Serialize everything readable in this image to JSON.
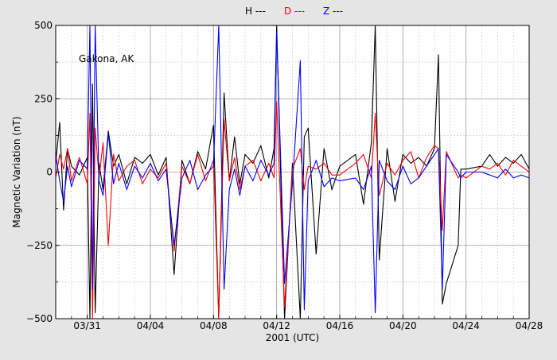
{
  "chart_data": {
    "type": "line",
    "legend_position": "top",
    "location_label": "Gakona, AK",
    "xlabel": "2001 (UTC)",
    "ylabel": "Magnetic Variation (nT)",
    "ylim": [
      -500,
      500
    ],
    "xlim": [
      "2001-03-29",
      "2001-04-28"
    ],
    "grid": true,
    "x_tick_labels": [
      "03/31",
      "04/04",
      "04/08",
      "04/12",
      "04/16",
      "04/20",
      "04/24",
      "04/28"
    ],
    "y_tick_labels": [
      "500",
      "250",
      "0",
      "−250",
      "−500"
    ],
    "series": [
      {
        "name": "H ---",
        "color": "#000000",
        "x": [
          "2001-03-29 00:00",
          "2001-03-29 06:00",
          "2001-03-29 12:00",
          "2001-03-29 18:00",
          "2001-03-30 00:00",
          "2001-03-30 12:00",
          "2001-03-31 00:00",
          "2001-03-31 04:00",
          "2001-03-31 08:00",
          "2001-03-31 12:00",
          "2001-03-31 18:00",
          "2001-04-01 00:00",
          "2001-04-01 08:00",
          "2001-04-01 16:00",
          "2001-04-02 00:00",
          "2001-04-02 12:00",
          "2001-04-03 00:00",
          "2001-04-03 12:00",
          "2001-04-04 00:00",
          "2001-04-04 12:00",
          "2001-04-05 00:00",
          "2001-04-05 12:00",
          "2001-04-06 00:00",
          "2001-04-06 12:00",
          "2001-04-07 00:00",
          "2001-04-07 12:00",
          "2001-04-08 00:00",
          "2001-04-08 08:00",
          "2001-04-08 16:00",
          "2001-04-09 00:00",
          "2001-04-09 08:00",
          "2001-04-09 16:00",
          "2001-04-10 00:00",
          "2001-04-10 12:00",
          "2001-04-11 00:00",
          "2001-04-11 12:00",
          "2001-04-11 20:00",
          "2001-04-12 00:00",
          "2001-04-12 12:00",
          "2001-04-13 00:00",
          "2001-04-13 12:00",
          "2001-04-13 18:00",
          "2001-04-14 00:00",
          "2001-04-14 12:00",
          "2001-04-15 00:00",
          "2001-04-15 12:00",
          "2001-04-16 00:00",
          "2001-04-17 00:00",
          "2001-04-17 12:00",
          "2001-04-18 00:00",
          "2001-04-18 06:00",
          "2001-04-18 12:00",
          "2001-04-19 00:00",
          "2001-04-19 12:00",
          "2001-04-20 00:00",
          "2001-04-20 12:00",
          "2001-04-21 00:00",
          "2001-04-21 12:00",
          "2001-04-22 00:00",
          "2001-04-22 06:00",
          "2001-04-22 12:00",
          "2001-04-22 18:00",
          "2001-04-23 12:00",
          "2001-04-23 16:00",
          "2001-04-24 00:00",
          "2001-04-25 00:00",
          "2001-04-25 12:00",
          "2001-04-26 00:00",
          "2001-04-26 12:00",
          "2001-04-27 00:00",
          "2001-04-27 12:00",
          "2001-04-28 00:00"
        ],
        "values": [
          30,
          170,
          -130,
          80,
          20,
          -10,
          50,
          -500,
          300,
          -480,
          30,
          -60,
          140,
          20,
          60,
          -40,
          50,
          30,
          60,
          -10,
          50,
          -350,
          40,
          -40,
          70,
          10,
          160,
          -500,
          270,
          -30,
          120,
          -40,
          60,
          30,
          90,
          -20,
          80,
          500,
          -500,
          30,
          -500,
          120,
          150,
          -280,
          80,
          -60,
          20,
          60,
          -110,
          100,
          500,
          -300,
          80,
          -100,
          60,
          30,
          50,
          20,
          80,
          400,
          -450,
          -380,
          -250,
          10,
          10,
          20,
          60,
          20,
          50,
          30,
          60,
          10
        ]
      },
      {
        "name": "D ---",
        "color": "#ff0000",
        "x": [
          "2001-03-29 00:00",
          "2001-03-29 06:00",
          "2001-03-29 12:00",
          "2001-03-29 18:00",
          "2001-03-30 00:00",
          "2001-03-30 12:00",
          "2001-03-31 00:00",
          "2001-03-31 04:00",
          "2001-03-31 08:00",
          "2001-03-31 12:00",
          "2001-03-31 18:00",
          "2001-04-01 00:00",
          "2001-04-01 08:00",
          "2001-04-01 16:00",
          "2001-04-02 00:00",
          "2001-04-02 12:00",
          "2001-04-03 00:00",
          "2001-04-03 12:00",
          "2001-04-04 00:00",
          "2001-04-04 12:00",
          "2001-04-05 00:00",
          "2001-04-05 12:00",
          "2001-04-06 00:00",
          "2001-04-06 12:00",
          "2001-04-07 00:00",
          "2001-04-07 12:00",
          "2001-04-08 00:00",
          "2001-04-08 08:00",
          "2001-04-08 16:00",
          "2001-04-09 00:00",
          "2001-04-09 08:00",
          "2001-04-09 16:00",
          "2001-04-10 00:00",
          "2001-04-10 12:00",
          "2001-04-11 00:00",
          "2001-04-11 12:00",
          "2001-04-11 20:00",
          "2001-04-12 00:00",
          "2001-04-12 12:00",
          "2001-04-13 00:00",
          "2001-04-13 12:00",
          "2001-04-13 18:00",
          "2001-04-14 00:00",
          "2001-04-14 12:00",
          "2001-04-15 00:00",
          "2001-04-15 12:00",
          "2001-04-16 00:00",
          "2001-04-17 00:00",
          "2001-04-17 12:00",
          "2001-04-18 00:00",
          "2001-04-18 06:00",
          "2001-04-18 12:00",
          "2001-04-19 00:00",
          "2001-04-19 12:00",
          "2001-04-20 00:00",
          "2001-04-20 12:00",
          "2001-04-21 00:00",
          "2001-04-21 12:00",
          "2001-04-22 00:00",
          "2001-04-22 06:00",
          "2001-04-22 12:00",
          "2001-04-22 18:00",
          "2001-04-23 12:00",
          "2001-04-23 16:00",
          "2001-04-24 00:00",
          "2001-04-25 00:00",
          "2001-04-25 12:00",
          "2001-04-26 00:00",
          "2001-04-26 12:00",
          "2001-04-27 00:00",
          "2001-04-27 12:00",
          "2001-04-28 00:00"
        ],
        "values": [
          -20,
          60,
          10,
          80,
          -30,
          50,
          -40,
          200,
          -500,
          150,
          -20,
          100,
          -250,
          60,
          -30,
          20,
          40,
          -40,
          10,
          -20,
          30,
          -270,
          20,
          -40,
          60,
          -30,
          40,
          -500,
          180,
          -30,
          50,
          -60,
          20,
          40,
          -30,
          30,
          -20,
          240,
          -460,
          10,
          80,
          -60,
          20,
          10,
          30,
          -10,
          -10,
          30,
          60,
          -20,
          200,
          -80,
          30,
          -10,
          40,
          70,
          -20,
          50,
          90,
          80,
          -200,
          70,
          -20,
          -10,
          -20,
          20,
          10,
          30,
          -10,
          40,
          20,
          0
        ]
      },
      {
        "name": "Z ---",
        "color": "#0000ff",
        "x": [
          "2001-03-29 00:00",
          "2001-03-29 06:00",
          "2001-03-29 12:00",
          "2001-03-29 18:00",
          "2001-03-30 00:00",
          "2001-03-30 12:00",
          "2001-03-31 00:00",
          "2001-03-31 04:00",
          "2001-03-31 08:00",
          "2001-03-31 12:00",
          "2001-03-31 18:00",
          "2001-04-01 00:00",
          "2001-04-01 08:00",
          "2001-04-01 16:00",
          "2001-04-02 00:00",
          "2001-04-02 12:00",
          "2001-04-03 00:00",
          "2001-04-03 12:00",
          "2001-04-04 00:00",
          "2001-04-04 12:00",
          "2001-04-05 00:00",
          "2001-04-05 12:00",
          "2001-04-06 00:00",
          "2001-04-06 12:00",
          "2001-04-07 00:00",
          "2001-04-07 12:00",
          "2001-04-08 00:00",
          "2001-04-08 08:00",
          "2001-04-08 16:00",
          "2001-04-09 00:00",
          "2001-04-09 08:00",
          "2001-04-09 16:00",
          "2001-04-10 00:00",
          "2001-04-10 12:00",
          "2001-04-11 00:00",
          "2001-04-11 12:00",
          "2001-04-11 20:00",
          "2001-04-12 00:00",
          "2001-04-12 12:00",
          "2001-04-13 00:00",
          "2001-04-13 12:00",
          "2001-04-13 18:00",
          "2001-04-14 00:00",
          "2001-04-14 12:00",
          "2001-04-15 00:00",
          "2001-04-15 12:00",
          "2001-04-16 00:00",
          "2001-04-17 00:00",
          "2001-04-17 12:00",
          "2001-04-18 00:00",
          "2001-04-18 06:00",
          "2001-04-18 12:00",
          "2001-04-19 00:00",
          "2001-04-19 12:00",
          "2001-04-20 00:00",
          "2001-04-20 12:00",
          "2001-04-21 00:00",
          "2001-04-21 12:00",
          "2001-04-22 00:00",
          "2001-04-22 06:00",
          "2001-04-22 12:00",
          "2001-04-22 18:00",
          "2001-04-23 12:00",
          "2001-04-23 16:00",
          "2001-04-24 00:00",
          "2001-04-25 00:00",
          "2001-04-25 12:00",
          "2001-04-26 00:00",
          "2001-04-26 12:00",
          "2001-04-27 00:00",
          "2001-04-27 12:00",
          "2001-04-28 00:00"
        ],
        "values": [
          60,
          -30,
          -100,
          20,
          -50,
          40,
          10,
          500,
          -400,
          500,
          -30,
          -80,
          130,
          -40,
          30,
          -60,
          20,
          -20,
          30,
          -30,
          10,
          -250,
          -20,
          40,
          -60,
          -10,
          20,
          500,
          -400,
          -60,
          10,
          -80,
          20,
          -30,
          40,
          -10,
          30,
          480,
          -380,
          -40,
          380,
          -470,
          -30,
          40,
          -50,
          -20,
          -30,
          -20,
          -60,
          20,
          -480,
          40,
          -30,
          -60,
          20,
          -40,
          -20,
          20,
          60,
          80,
          -400,
          60,
          0,
          -20,
          0,
          0,
          -10,
          -20,
          10,
          -20,
          -10,
          -20
        ]
      }
    ]
  }
}
